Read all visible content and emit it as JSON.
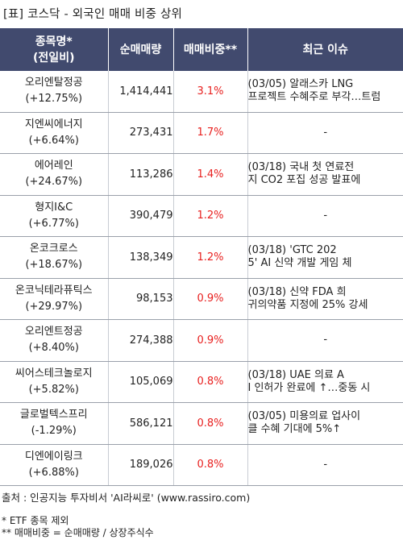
{
  "title": "[표] 코스닥 - 외국인 매매 비중 상위",
  "columns": {
    "name_line1": "종목명*",
    "name_line2": "(전일비)",
    "volume": "순매매량",
    "ratio": "매매비중**",
    "issue": "최근 이슈"
  },
  "rows": [
    {
      "name": "오리엔탈정공",
      "change": "(+12.75%)",
      "volume": "1,414,441",
      "ratio": "3.1%",
      "issue": "(03/05) 알래스카 LNG\n 프로젝트 수혜주로 부각…트럼"
    },
    {
      "name": "지엔씨에너지",
      "change": "(+6.64%)",
      "volume": "273,431",
      "ratio": "1.7%",
      "issue": "-"
    },
    {
      "name": "에어레인",
      "change": "(+24.67%)",
      "volume": "113,286",
      "ratio": "1.4%",
      "issue": "(03/18) 국내 첫 연료전\n지 CO2 포집 성공 발표에"
    },
    {
      "name": "형지I&C",
      "change": "(+6.77%)",
      "volume": "390,479",
      "ratio": "1.2%",
      "issue": "-"
    },
    {
      "name": "온코크로스",
      "change": "(+18.67%)",
      "volume": "138,349",
      "ratio": "1.2%",
      "issue": "(03/18) 'GTC 202\n5' AI 신약 개발 게임 체"
    },
    {
      "name": "온코닉테라퓨틱스",
      "change": "(+29.97%)",
      "volume": "98,153",
      "ratio": "0.9%",
      "issue": "(03/18) 신약 FDA 희\n귀의약품 지정에 25% 강세"
    },
    {
      "name": "오리엔트정공",
      "change": "(+8.40%)",
      "volume": "274,388",
      "ratio": "0.9%",
      "issue": "-"
    },
    {
      "name": "씨어스테크놀로지",
      "change": "(+5.82%)",
      "volume": "105,069",
      "ratio": "0.8%",
      "issue": "(03/18) UAE 의료 A\nI 인허가 완료에 ↑…중동 시"
    },
    {
      "name": "글로벌텍스프리",
      "change": "(-1.29%)",
      "volume": "586,121",
      "ratio": "0.8%",
      "issue": "(03/05) 미용의료 업사이\n클 수혜 기대에 5%↑"
    },
    {
      "name": "디엔에이링크",
      "change": "(+6.88%)",
      "volume": "189,026",
      "ratio": "0.8%",
      "issue": "-"
    }
  ],
  "footer": {
    "source": "출처 : 인공지능 투자비서 'AI라씨로' (www.rassiro.com)",
    "note1": "* ETF 종목 제외",
    "note2": "** 매매비중 = 순매매량 / 상장주식수"
  },
  "colors": {
    "header_bg": "#414a6e",
    "ratio_text": "#e8201f"
  }
}
